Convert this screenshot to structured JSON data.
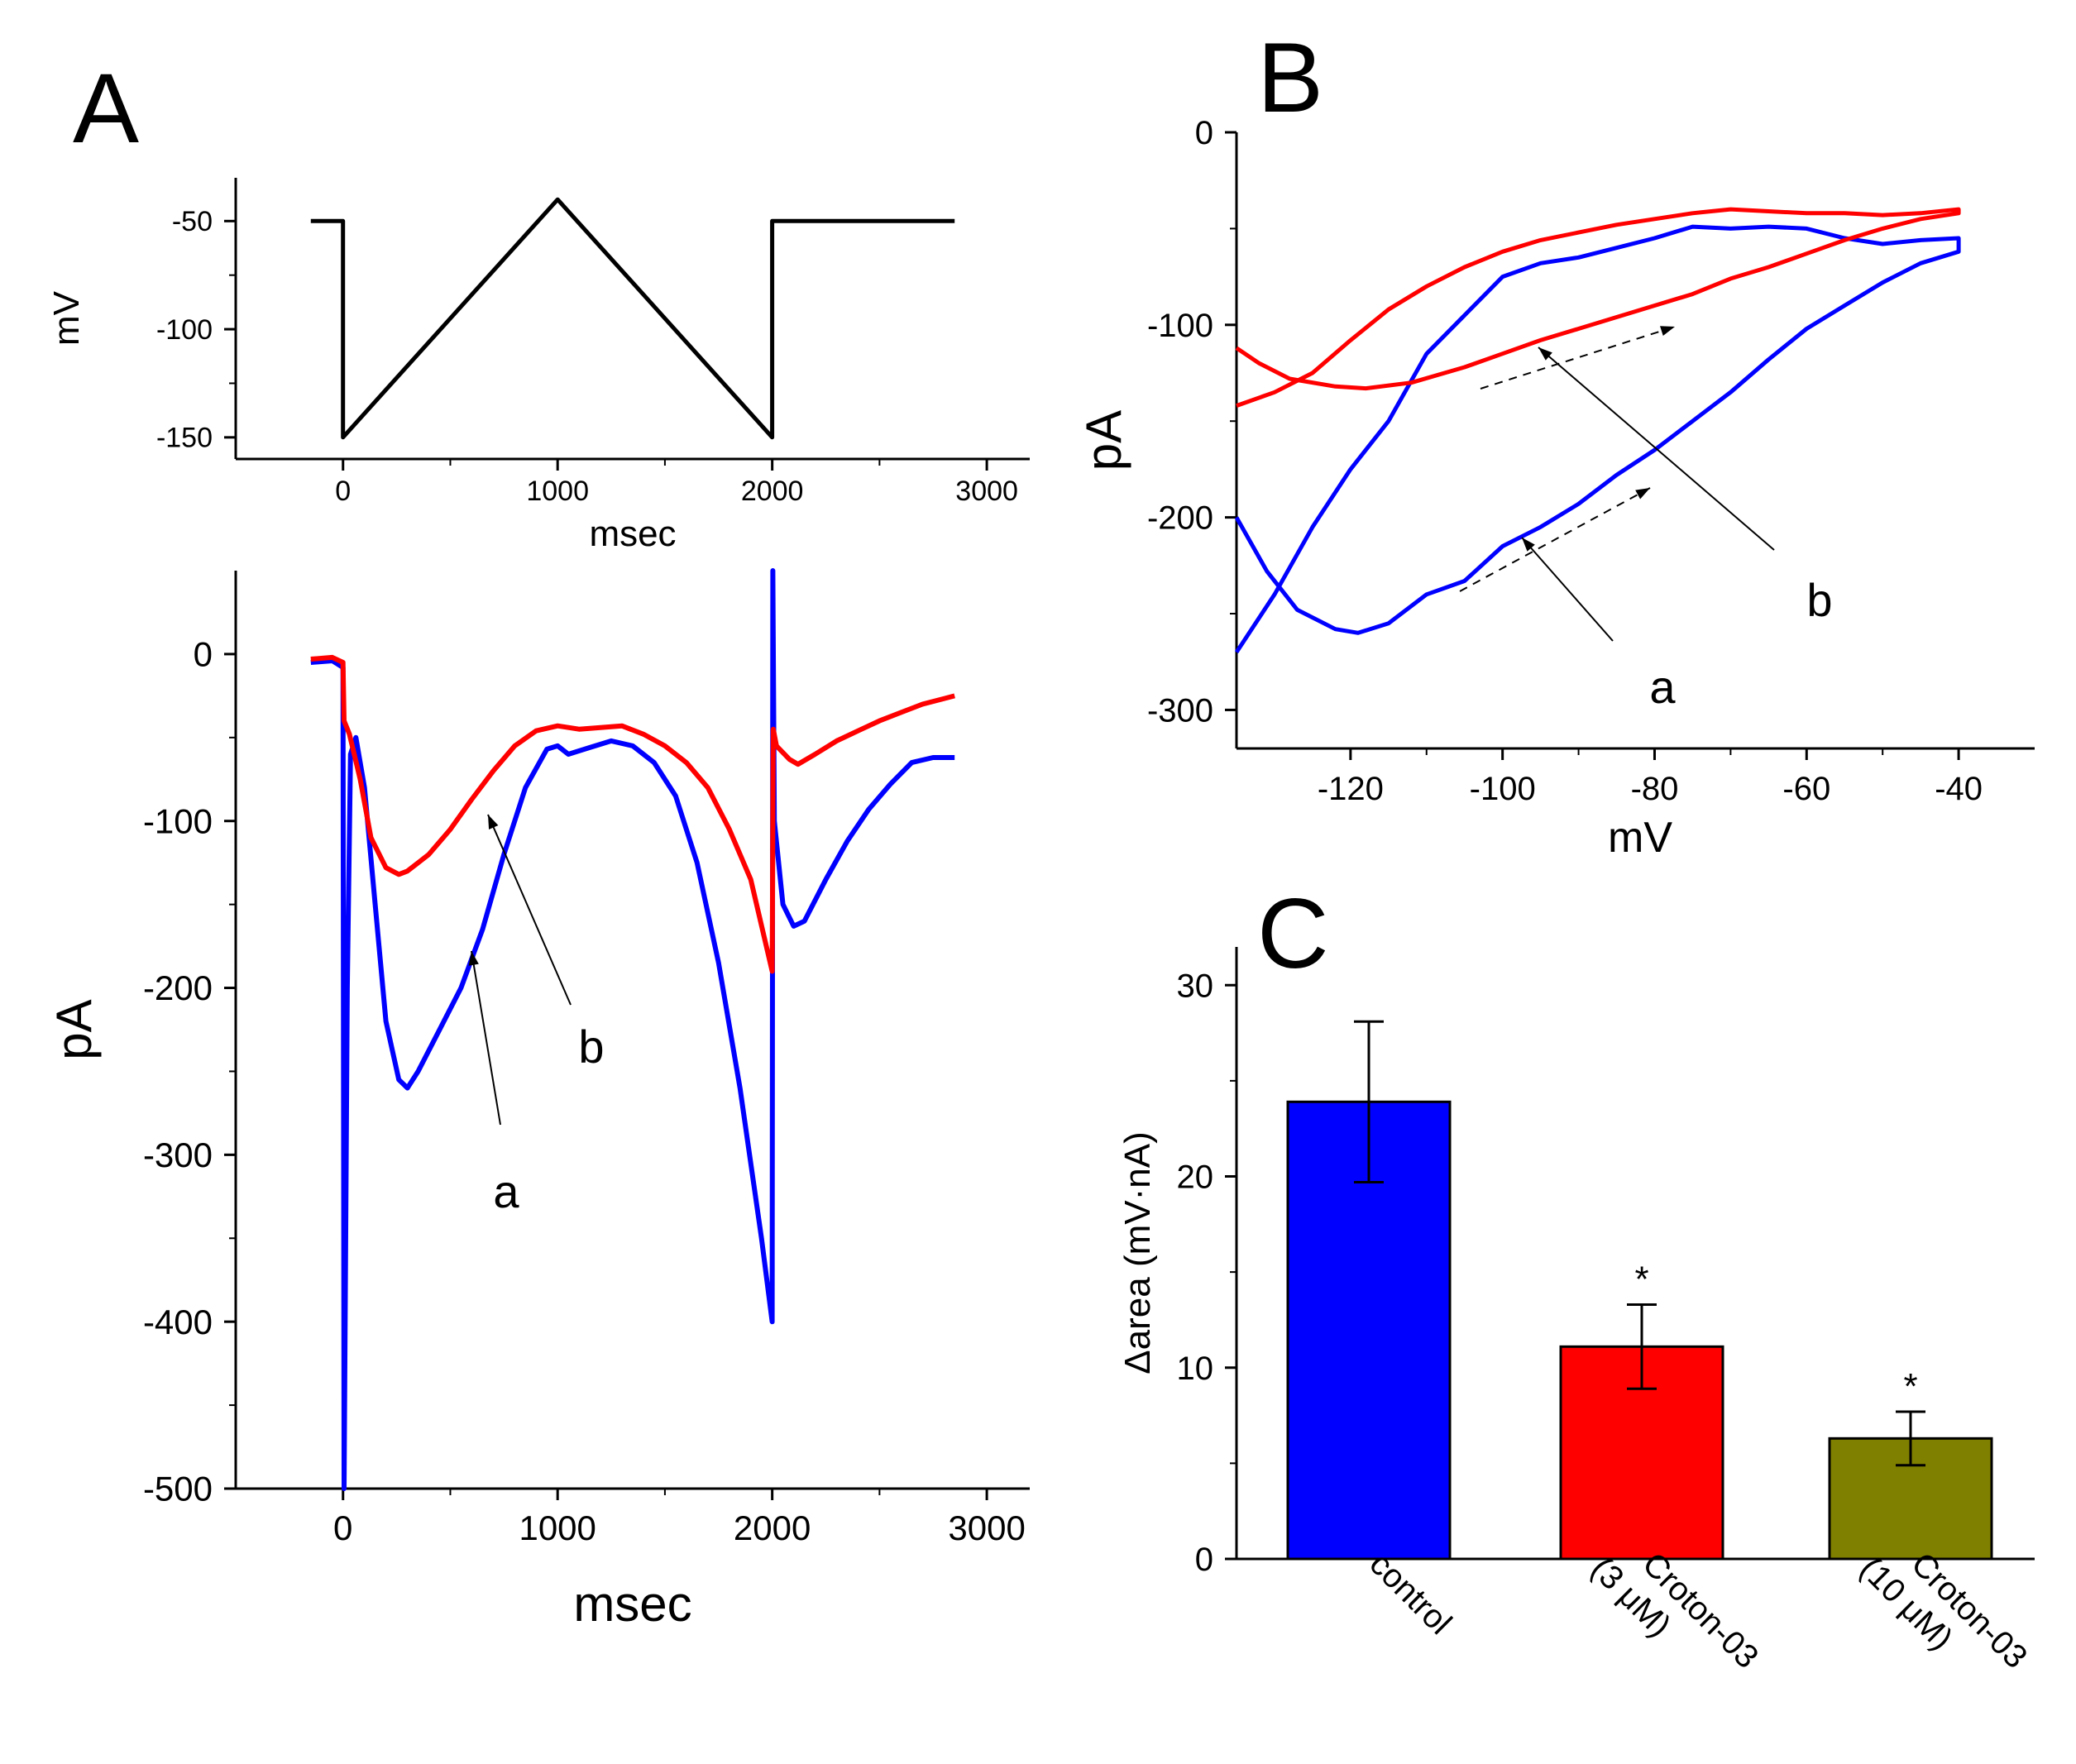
{
  "panels": {
    "A": "A",
    "B": "B",
    "C": "C"
  },
  "colors": {
    "control": "#0000ff",
    "croton": "#ff0000",
    "croton10": "#808000",
    "protocol": "#000000",
    "arrow": "#000000"
  },
  "chart_data": [
    {
      "id": "A_top",
      "type": "line",
      "title": "",
      "xlabel": "msec",
      "ylabel": "mV",
      "xlim": [
        -500,
        3200
      ],
      "ylim": [
        -160,
        -30
      ],
      "xticks": [
        0,
        1000,
        2000,
        3000
      ],
      "yticks": [
        -50,
        -100,
        -150
      ],
      "series": [
        {
          "color_key": "protocol",
          "points": [
            [
              -150,
              -50
            ],
            [
              0,
              -50
            ],
            [
              0,
              -150
            ],
            [
              1000,
              -40
            ],
            [
              2000,
              -150
            ],
            [
              2000,
              -50
            ],
            [
              2850,
              -50
            ]
          ]
        }
      ]
    },
    {
      "id": "A_bottom",
      "type": "line",
      "title": "",
      "xlabel": "msec",
      "ylabel": "pA",
      "xlim": [
        -500,
        3200
      ],
      "ylim": [
        -500,
        50
      ],
      "xticks": [
        0,
        1000,
        2000,
        3000
      ],
      "yticks": [
        0,
        -100,
        -200,
        -300,
        -400,
        -500
      ],
      "labels": [
        "a",
        "b"
      ],
      "series": [
        {
          "label": "a",
          "color_key": "control",
          "points": [
            [
              -150,
              -5
            ],
            [
              -50,
              -4
            ],
            [
              0,
              -8
            ],
            [
              5,
              -500
            ],
            [
              20,
              -200
            ],
            [
              35,
              -60
            ],
            [
              60,
              -50
            ],
            [
              100,
              -80
            ],
            [
              150,
              -150
            ],
            [
              200,
              -220
            ],
            [
              260,
              -255
            ],
            [
              300,
              -260
            ],
            [
              350,
              -250
            ],
            [
              450,
              -225
            ],
            [
              550,
              -200
            ],
            [
              650,
              -165
            ],
            [
              750,
              -120
            ],
            [
              850,
              -80
            ],
            [
              950,
              -57
            ],
            [
              1000,
              -55
            ],
            [
              1050,
              -60
            ],
            [
              1150,
              -56
            ],
            [
              1250,
              -52
            ],
            [
              1350,
              -55
            ],
            [
              1450,
              -65
            ],
            [
              1550,
              -85
            ],
            [
              1650,
              -125
            ],
            [
              1750,
              -185
            ],
            [
              1850,
              -260
            ],
            [
              1950,
              -350
            ],
            [
              2000,
              -400
            ],
            [
              2003,
              50
            ],
            [
              2010,
              -100
            ],
            [
              2050,
              -150
            ],
            [
              2100,
              -163
            ],
            [
              2150,
              -160
            ],
            [
              2250,
              -135
            ],
            [
              2350,
              -112
            ],
            [
              2450,
              -93
            ],
            [
              2550,
              -78
            ],
            [
              2650,
              -65
            ],
            [
              2750,
              -62
            ],
            [
              2850,
              -62
            ]
          ]
        },
        {
          "label": "b",
          "color_key": "croton",
          "points": [
            [
              -150,
              -3
            ],
            [
              -50,
              -2
            ],
            [
              0,
              -5
            ],
            [
              5,
              -40
            ],
            [
              30,
              -48
            ],
            [
              80,
              -75
            ],
            [
              130,
              -110
            ],
            [
              200,
              -128
            ],
            [
              260,
              -132
            ],
            [
              300,
              -130
            ],
            [
              400,
              -120
            ],
            [
              500,
              -105
            ],
            [
              600,
              -87
            ],
            [
              700,
              -70
            ],
            [
              800,
              -55
            ],
            [
              900,
              -46
            ],
            [
              1000,
              -43
            ],
            [
              1100,
              -45
            ],
            [
              1200,
              -44
            ],
            [
              1300,
              -43
            ],
            [
              1400,
              -48
            ],
            [
              1500,
              -55
            ],
            [
              1600,
              -65
            ],
            [
              1700,
              -80
            ],
            [
              1800,
              -105
            ],
            [
              1900,
              -135
            ],
            [
              2000,
              -190
            ],
            [
              2005,
              -45
            ],
            [
              2020,
              -55
            ],
            [
              2080,
              -63
            ],
            [
              2120,
              -66
            ],
            [
              2200,
              -60
            ],
            [
              2300,
              -52
            ],
            [
              2400,
              -46
            ],
            [
              2500,
              -40
            ],
            [
              2600,
              -35
            ],
            [
              2700,
              -30
            ],
            [
              2850,
              -25
            ]
          ]
        }
      ]
    },
    {
      "id": "B",
      "type": "line",
      "title": "",
      "xlabel": "mV",
      "ylabel": "pA",
      "xlim": [
        -135,
        -30
      ],
      "ylim": [
        -320,
        0
      ],
      "xticks": [
        -120,
        -100,
        -80,
        -60,
        -40
      ],
      "yticks": [
        0,
        -100,
        -200,
        -300
      ],
      "labels": [
        "a",
        "b"
      ],
      "series": [
        {
          "label": "a",
          "color_key": "control",
          "points": [
            [
              -135,
              -200
            ],
            [
              -131,
              -228
            ],
            [
              -127,
              -248
            ],
            [
              -122,
              -258
            ],
            [
              -119,
              -260
            ],
            [
              -115,
              -255
            ],
            [
              -110,
              -240
            ],
            [
              -105,
              -233
            ],
            [
              -100,
              -215
            ],
            [
              -95,
              -205
            ],
            [
              -90,
              -193
            ],
            [
              -85,
              -178
            ],
            [
              -80,
              -165
            ],
            [
              -75,
              -150
            ],
            [
              -70,
              -135
            ],
            [
              -65,
              -118
            ],
            [
              -60,
              -102
            ],
            [
              -55,
              -90
            ],
            [
              -50,
              -78
            ],
            [
              -45,
              -68
            ],
            [
              -40,
              -62
            ],
            [
              -40,
              -55
            ],
            [
              -45,
              -56
            ],
            [
              -50,
              -58
            ],
            [
              -55,
              -55
            ],
            [
              -60,
              -50
            ],
            [
              -65,
              -49
            ],
            [
              -70,
              -50
            ],
            [
              -75,
              -49
            ],
            [
              -80,
              -55
            ],
            [
              -85,
              -60
            ],
            [
              -90,
              -65
            ],
            [
              -95,
              -68
            ],
            [
              -100,
              -75
            ],
            [
              -105,
              -95
            ],
            [
              -110,
              -115
            ],
            [
              -115,
              -150
            ],
            [
              -120,
              -175
            ],
            [
              -125,
              -205
            ],
            [
              -130,
              -240
            ],
            [
              -135,
              -270
            ]
          ]
        },
        {
          "label": "b",
          "color_key": "croton",
          "points": [
            [
              -135,
              -112
            ],
            [
              -132,
              -120
            ],
            [
              -128,
              -128
            ],
            [
              -122,
              -132
            ],
            [
              -118,
              -133
            ],
            [
              -112,
              -130
            ],
            [
              -105,
              -122
            ],
            [
              -100,
              -115
            ],
            [
              -95,
              -108
            ],
            [
              -90,
              -102
            ],
            [
              -85,
              -96
            ],
            [
              -80,
              -90
            ],
            [
              -75,
              -84
            ],
            [
              -70,
              -76
            ],
            [
              -65,
              -70
            ],
            [
              -60,
              -63
            ],
            [
              -55,
              -56
            ],
            [
              -50,
              -50
            ],
            [
              -45,
              -45
            ],
            [
              -40,
              -42
            ],
            [
              -40,
              -40
            ],
            [
              -45,
              -42
            ],
            [
              -50,
              -43
            ],
            [
              -55,
              -42
            ],
            [
              -60,
              -42
            ],
            [
              -65,
              -41
            ],
            [
              -70,
              -40
            ],
            [
              -75,
              -42
            ],
            [
              -80,
              -45
            ],
            [
              -85,
              -48
            ],
            [
              -90,
              -52
            ],
            [
              -95,
              -56
            ],
            [
              -100,
              -62
            ],
            [
              -105,
              -70
            ],
            [
              -110,
              -80
            ],
            [
              -115,
              -92
            ],
            [
              -120,
              -108
            ],
            [
              -125,
              -125
            ],
            [
              -130,
              -135
            ],
            [
              -135,
              -142
            ]
          ]
        }
      ]
    },
    {
      "id": "C",
      "type": "bar",
      "title": "",
      "xlabel": "",
      "ylabel": "Δarea (mV·nA)",
      "ylim": [
        0,
        32
      ],
      "yticks": [
        0,
        10,
        20,
        30
      ],
      "categories": [
        [
          "control"
        ],
        [
          "Croton-03",
          "(3 μM)"
        ],
        [
          "Croton-03",
          "(10 μM)"
        ]
      ],
      "values": [
        23.9,
        11.1,
        6.3
      ],
      "errors": [
        4.2,
        2.2,
        1.4
      ],
      "significance": [
        "",
        "*",
        "*"
      ],
      "color_keys": [
        "control",
        "croton",
        "croton10"
      ]
    }
  ]
}
